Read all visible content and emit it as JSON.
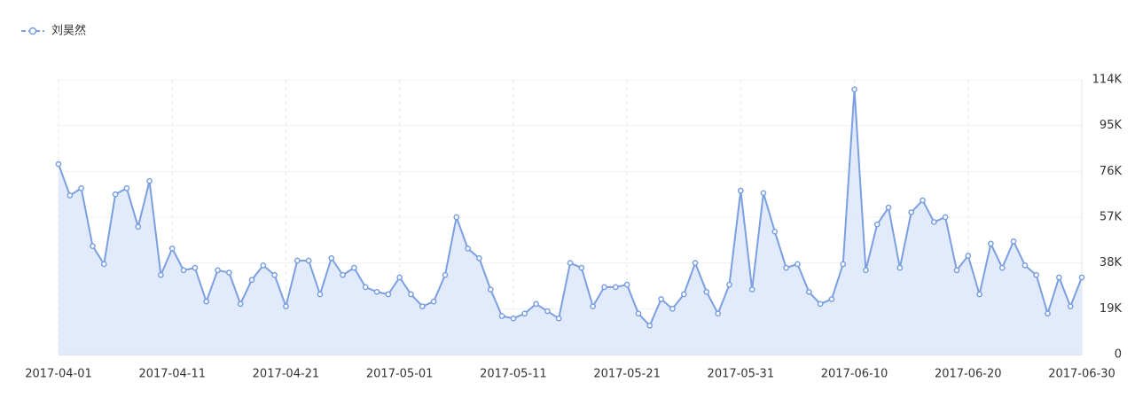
{
  "chart_data": {
    "type": "line",
    "x": [
      "2017-04-01",
      "2017-04-02",
      "2017-04-03",
      "2017-04-04",
      "2017-04-05",
      "2017-04-06",
      "2017-04-07",
      "2017-04-08",
      "2017-04-09",
      "2017-04-10",
      "2017-04-11",
      "2017-04-12",
      "2017-04-13",
      "2017-04-14",
      "2017-04-15",
      "2017-04-16",
      "2017-04-17",
      "2017-04-18",
      "2017-04-19",
      "2017-04-20",
      "2017-04-21",
      "2017-04-22",
      "2017-04-23",
      "2017-04-24",
      "2017-04-25",
      "2017-04-26",
      "2017-04-27",
      "2017-04-28",
      "2017-04-29",
      "2017-04-30",
      "2017-05-01",
      "2017-05-02",
      "2017-05-03",
      "2017-05-04",
      "2017-05-05",
      "2017-05-06",
      "2017-05-07",
      "2017-05-08",
      "2017-05-09",
      "2017-05-10",
      "2017-05-11",
      "2017-05-12",
      "2017-05-13",
      "2017-05-14",
      "2017-05-15",
      "2017-05-16",
      "2017-05-17",
      "2017-05-18",
      "2017-05-19",
      "2017-05-20",
      "2017-05-21",
      "2017-05-22",
      "2017-05-23",
      "2017-05-24",
      "2017-05-25",
      "2017-05-26",
      "2017-05-27",
      "2017-05-28",
      "2017-05-29",
      "2017-05-30",
      "2017-05-31",
      "2017-06-01",
      "2017-06-02",
      "2017-06-03",
      "2017-06-04",
      "2017-06-05",
      "2017-06-06",
      "2017-06-07",
      "2017-06-08",
      "2017-06-09",
      "2017-06-10",
      "2017-06-11",
      "2017-06-12",
      "2017-06-13",
      "2017-06-14",
      "2017-06-15",
      "2017-06-16",
      "2017-06-17",
      "2017-06-18",
      "2017-06-19",
      "2017-06-20",
      "2017-06-21",
      "2017-06-22",
      "2017-06-23",
      "2017-06-24",
      "2017-06-25",
      "2017-06-26",
      "2017-06-27",
      "2017-06-28",
      "2017-06-29",
      "2017-06-30"
    ],
    "series": [
      {
        "name": "刘昊然",
        "color": "#7b9fe0",
        "values": [
          79000,
          66000,
          69000,
          45000,
          37500,
          66500,
          69000,
          53000,
          72000,
          33000,
          44000,
          35000,
          36000,
          22000,
          35000,
          34000,
          21000,
          31000,
          37000,
          33000,
          20000,
          39000,
          39000,
          25000,
          40000,
          33000,
          36000,
          28000,
          26000,
          25000,
          32000,
          25000,
          20000,
          22000,
          33000,
          57000,
          44000,
          40000,
          27000,
          16000,
          15000,
          17000,
          21000,
          18000,
          15000,
          38000,
          36000,
          20000,
          28000,
          28000,
          29000,
          17000,
          12000,
          23000,
          19000,
          25000,
          38000,
          26000,
          17000,
          29000,
          68000,
          27000,
          67000,
          51000,
          36000,
          37500,
          26000,
          21000,
          23000,
          37500,
          110000,
          35000,
          54000,
          61000,
          36000,
          59000,
          64000,
          55000,
          57000,
          35000,
          41000,
          25000,
          46000,
          36000,
          47000,
          37000,
          33000,
          17000,
          32000,
          20000,
          32000
        ]
      }
    ],
    "xticks": [
      "2017-04-01",
      "2017-04-11",
      "2017-04-21",
      "2017-05-01",
      "2017-05-11",
      "2017-05-21",
      "2017-05-31",
      "2017-06-10",
      "2017-06-20",
      "2017-06-30"
    ],
    "ylim": [
      0,
      114000
    ],
    "yticks": [
      0,
      {
        "value": 19000,
        "label": "19K"
      },
      {
        "value": 38000,
        "label": "38K"
      },
      {
        "value": 57000,
        "label": "57K"
      },
      {
        "value": 76000,
        "label": "76K"
      },
      {
        "value": 95000,
        "label": "95K"
      },
      {
        "value": 114000,
        "label": "114K"
      }
    ],
    "grid": true,
    "area": true
  }
}
